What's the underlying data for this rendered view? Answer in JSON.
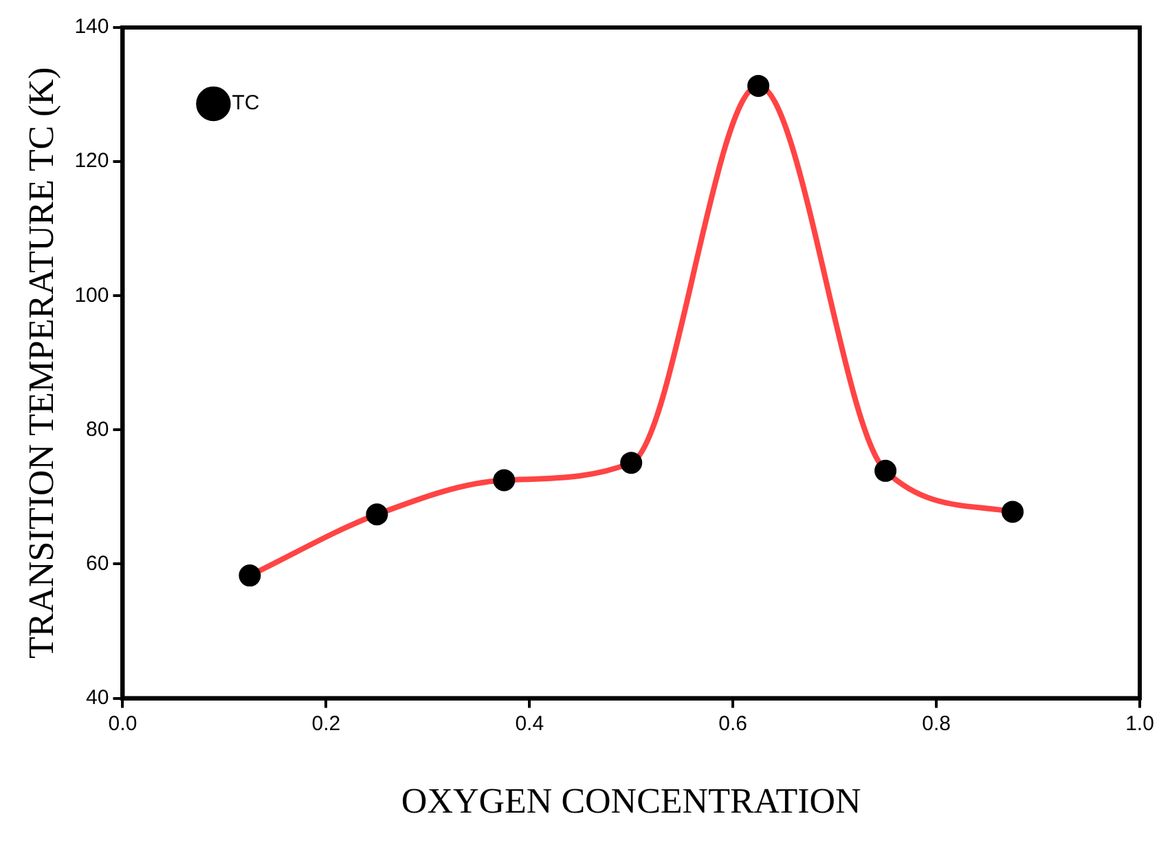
{
  "chart_data": {
    "type": "line",
    "xlabel": "OXYGEN CONCENTRATION",
    "ylabel": "TRANSITION TEMPERATURE TC (K)",
    "x": [
      0.125,
      0.25,
      0.375,
      0.5,
      0.625,
      0.75,
      0.875
    ],
    "series": [
      {
        "name": "TC",
        "color": "#ff4444",
        "values": [
          58.3,
          67.4,
          72.5,
          75.1,
          131.3,
          73.9,
          67.8
        ]
      }
    ],
    "xlim": [
      0,
      1
    ],
    "xticks": [
      {
        "value": 0,
        "label": "0.0"
      },
      0.2,
      0.4,
      0.6,
      0.8,
      {
        "value": 1,
        "label": "1.0"
      }
    ],
    "ylim": [
      40,
      140
    ],
    "yticks": [
      40,
      60,
      80,
      100,
      120,
      140
    ],
    "marker": "circle",
    "line_style": "solid",
    "legend": "top left"
  }
}
